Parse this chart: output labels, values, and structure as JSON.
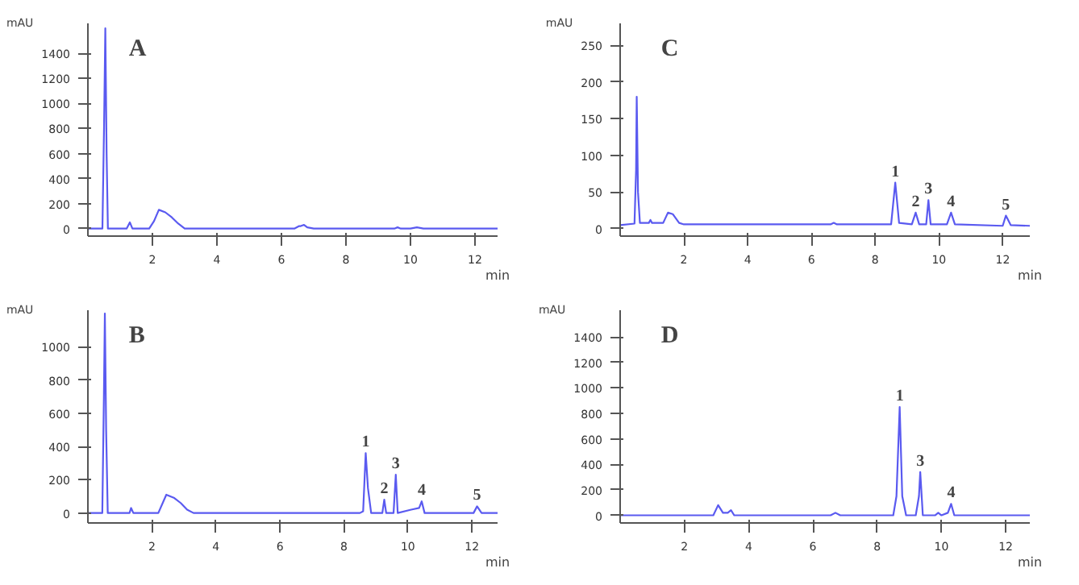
{
  "chart_data": [
    {
      "type": "line",
      "title": "A",
      "xlabel": "min",
      "ylabel": "mAU",
      "color": "#5a5af0",
      "xlim": [
        0,
        12.7
      ],
      "ylim": [
        -60,
        1640
      ],
      "xticks": [
        2,
        4,
        6,
        8,
        10,
        12
      ],
      "yticks": [
        0,
        200,
        400,
        600,
        800,
        1000,
        1200,
        1400
      ],
      "x": [
        0,
        0.45,
        0.5,
        0.54,
        0.58,
        0.62,
        1.2,
        1.3,
        1.38,
        1.9,
        2.05,
        2.2,
        2.4,
        2.6,
        2.8,
        3.0,
        3.2,
        6.4,
        6.55,
        6.6,
        6.7,
        6.8,
        7.0,
        9.5,
        9.6,
        9.7,
        10.0,
        10.2,
        10.4,
        12.7
      ],
      "values": [
        0,
        0,
        800,
        1600,
        600,
        0,
        0,
        50,
        0,
        0,
        60,
        150,
        130,
        90,
        40,
        0,
        0,
        0,
        20,
        20,
        30,
        10,
        0,
        0,
        10,
        0,
        0,
        10,
        0,
        0
      ]
    },
    {
      "type": "line",
      "title": "C",
      "xlabel": "min",
      "ylabel": "mAU",
      "color": "#5a5af0",
      "xlim": [
        0,
        12.85
      ],
      "ylim": [
        -10,
        280
      ],
      "xticks": [
        2,
        4,
        6,
        8,
        10,
        12
      ],
      "yticks": [
        0,
        50,
        100,
        150,
        200,
        250
      ],
      "x": [
        0,
        0.45,
        0.5,
        0.52,
        0.56,
        0.62,
        0.9,
        0.95,
        1.0,
        1.35,
        1.5,
        1.65,
        1.85,
        2.0,
        6.6,
        6.7,
        6.8,
        8.5,
        8.63,
        8.75,
        9.15,
        9.27,
        9.38,
        9.6,
        9.67,
        9.74,
        10.25,
        10.38,
        10.5,
        12.0,
        12.1,
        12.25,
        12.85
      ],
      "values": [
        5,
        7,
        80,
        180,
        50,
        8,
        8,
        12,
        8,
        8,
        22,
        20,
        8,
        6,
        6,
        8,
        6,
        6,
        63,
        8,
        6,
        22,
        6,
        6,
        39,
        6,
        6,
        22,
        6,
        4,
        18,
        5,
        4
      ],
      "annotations": [
        {
          "text": "1",
          "x": 8.63,
          "y": 63
        },
        {
          "text": "2",
          "x": 9.27,
          "y": 22
        },
        {
          "text": "3",
          "x": 9.67,
          "y": 39
        },
        {
          "text": "4",
          "x": 10.38,
          "y": 22
        },
        {
          "text": "5",
          "x": 12.1,
          "y": 18
        }
      ]
    },
    {
      "type": "line",
      "title": "B",
      "xlabel": "min",
      "ylabel": "mAU",
      "color": "#5a5af0",
      "xlim": [
        0,
        12.8
      ],
      "ylim": [
        -60,
        1220
      ],
      "xticks": [
        2,
        4,
        6,
        8,
        10,
        12
      ],
      "yticks": [
        0,
        200,
        400,
        600,
        800,
        1000
      ],
      "x": [
        0,
        0.45,
        0.5,
        0.53,
        0.57,
        0.62,
        1.3,
        1.35,
        1.42,
        2.2,
        2.45,
        2.7,
        2.9,
        3.1,
        3.3,
        8.5,
        8.6,
        8.68,
        8.75,
        8.85,
        9.2,
        9.26,
        9.32,
        9.55,
        9.62,
        9.68,
        10.1,
        10.35,
        10.43,
        10.52,
        12.05,
        12.16,
        12.3,
        12.8
      ],
      "values": [
        0,
        0,
        700,
        1200,
        500,
        0,
        0,
        30,
        0,
        0,
        110,
        90,
        60,
        20,
        0,
        0,
        10,
        360,
        150,
        0,
        0,
        80,
        0,
        0,
        230,
        0,
        20,
        30,
        70,
        0,
        0,
        40,
        0,
        0
      ],
      "annotations": [
        {
          "text": "1",
          "x": 8.68,
          "y": 360
        },
        {
          "text": "2",
          "x": 9.26,
          "y": 80
        },
        {
          "text": "3",
          "x": 9.62,
          "y": 230
        },
        {
          "text": "4",
          "x": 10.43,
          "y": 70
        },
        {
          "text": "5",
          "x": 12.16,
          "y": 40
        }
      ]
    },
    {
      "type": "line",
      "title": "D",
      "xlabel": "min",
      "ylabel": "mAU",
      "color": "#5a5af0",
      "xlim": [
        0,
        12.75
      ],
      "ylim": [
        -60,
        1610
      ],
      "xticks": [
        2,
        4,
        6,
        8,
        10,
        12
      ],
      "yticks": [
        0,
        200,
        400,
        600,
        800,
        1000,
        1200,
        1400
      ],
      "x": [
        0,
        2.9,
        3.05,
        3.2,
        3.35,
        3.45,
        3.55,
        6.55,
        6.7,
        6.85,
        8.5,
        8.6,
        8.7,
        8.78,
        8.9,
        9.2,
        9.3,
        9.34,
        9.42,
        9.8,
        9.9,
        10.0,
        10.2,
        10.3,
        10.4,
        12.75
      ],
      "values": [
        0,
        0,
        80,
        20,
        20,
        40,
        0,
        0,
        20,
        0,
        0,
        150,
        850,
        150,
        0,
        0,
        150,
        340,
        0,
        0,
        20,
        0,
        20,
        90,
        0,
        0
      ],
      "annotations": [
        {
          "text": "1",
          "x": 8.7,
          "y": 850
        },
        {
          "text": "3",
          "x": 9.34,
          "y": 340
        },
        {
          "text": "4",
          "x": 10.3,
          "y": 90
        }
      ]
    }
  ]
}
